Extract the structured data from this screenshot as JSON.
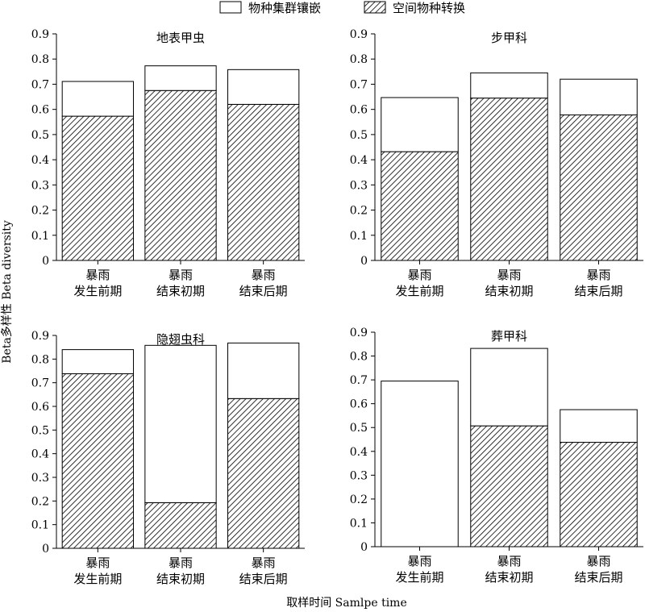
{
  "figure": {
    "ylabel": "Beta多样性 Beta diversity",
    "xlabel": "取样时间 Samlpe time",
    "legend": [
      {
        "name": "物种集群镶嵌",
        "pattern": "white"
      },
      {
        "name": "空间物种转换",
        "pattern": "hatch"
      }
    ]
  },
  "chart_data": [
    {
      "type": "bar",
      "stacked": true,
      "title": "地表甲虫",
      "categories": [
        [
          "暴雨",
          "发生前期"
        ],
        [
          "暴雨",
          "结束初期"
        ],
        [
          "暴雨",
          "结束后期"
        ]
      ],
      "series": [
        {
          "name": "空间物种转换",
          "values": [
            0.573,
            0.675,
            0.62
          ]
        },
        {
          "name": "物种集群镶嵌",
          "values": [
            0.138,
            0.098,
            0.138
          ]
        }
      ],
      "ylim": [
        0,
        0.9
      ],
      "yticks": [
        0,
        0.1,
        0.2,
        0.3,
        0.4,
        0.5,
        0.6,
        0.7,
        0.8,
        0.9
      ],
      "ytick_labels": [
        "0",
        "0.1",
        "0.2",
        "0.3",
        "0.4",
        "0.5",
        "0.6",
        "0.7",
        "0.8",
        "0.9"
      ]
    },
    {
      "type": "bar",
      "stacked": true,
      "title": "步甲科",
      "categories": [
        [
          "暴雨",
          "发生前期"
        ],
        [
          "暴雨",
          "结束初期"
        ],
        [
          "暴雨",
          "结束后期"
        ]
      ],
      "series": [
        {
          "name": "空间物种转换",
          "values": [
            0.432,
            0.645,
            0.578
          ]
        },
        {
          "name": "物种集群镶嵌",
          "values": [
            0.215,
            0.1,
            0.142
          ]
        }
      ],
      "ylim": [
        0,
        0.9
      ],
      "yticks": [
        0,
        0.1,
        0.2,
        0.3,
        0.4,
        0.5,
        0.6,
        0.7,
        0.8,
        0.9
      ],
      "ytick_labels": [
        "0",
        "0.1",
        "0.2",
        "0.3",
        "0.4",
        "0.5",
        "0.6",
        "0.7",
        "0.8",
        "0.9"
      ]
    },
    {
      "type": "bar",
      "stacked": true,
      "title": "隐翅虫科",
      "categories": [
        [
          "暴雨",
          "发生前期"
        ],
        [
          "暴雨",
          "结束初期"
        ],
        [
          "暴雨",
          "结束后期"
        ]
      ],
      "series": [
        {
          "name": "空间物种转换",
          "values": [
            0.738,
            0.193,
            0.633
          ]
        },
        {
          "name": "物种集群镶嵌",
          "values": [
            0.102,
            0.665,
            0.235
          ]
        }
      ],
      "ylim": [
        0,
        0.9
      ],
      "yticks": [
        0,
        0.1,
        0.2,
        0.3,
        0.4,
        0.5,
        0.6,
        0.7,
        0.8,
        0.9
      ],
      "ytick_labels": [
        "0",
        "0.1",
        "0.2",
        "0.3",
        "0.4",
        "0.5",
        "0.6",
        "0.7",
        "0.8",
        "0.9"
      ]
    },
    {
      "type": "bar",
      "stacked": true,
      "title": "葬甲科",
      "categories": [
        [
          "暴雨",
          "发生前期"
        ],
        [
          "暴雨",
          "结束初期"
        ],
        [
          "暴雨",
          "结束后期"
        ]
      ],
      "series": [
        {
          "name": "空间物种转换",
          "values": [
            0.0,
            0.507,
            0.438
          ]
        },
        {
          "name": "物种集群镶嵌",
          "values": [
            0.695,
            0.325,
            0.137
          ]
        }
      ],
      "ylim": [
        0,
        0.9
      ],
      "yticks": [
        0,
        0.1,
        0.2,
        0.3,
        0.4,
        0.5,
        0.6,
        0.7,
        0.8,
        0.9
      ],
      "ytick_labels": [
        "0",
        "0.1",
        "0.2",
        "0.3",
        "0.4",
        "0.5",
        "0.6",
        "0.7",
        "0.8",
        "0.9"
      ]
    }
  ]
}
